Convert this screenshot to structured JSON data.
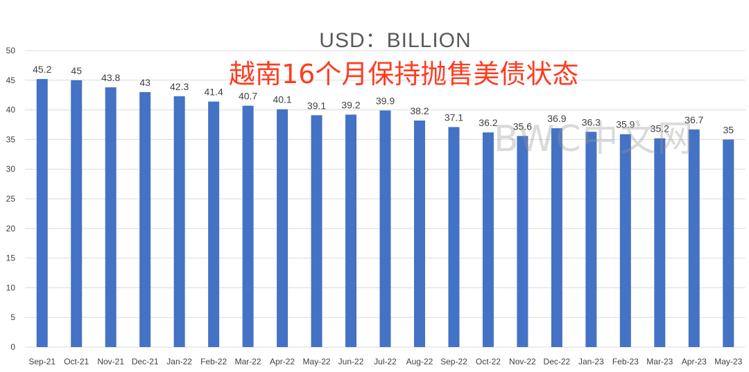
{
  "title": "USD：BILLION",
  "subtitle": "越南16个月保持抛售美债状态",
  "watermark": "BWC中文网",
  "chart_data": {
    "type": "bar",
    "categories": [
      "Sep-21",
      "Oct-21",
      "Nov-21",
      "Dec-21",
      "Jan-22",
      "Feb-22",
      "Mar-22",
      "Apr-22",
      "May-22",
      "Jun-22",
      "Jul-22",
      "Aug-22",
      "Sep-22",
      "Oct-22",
      "Nov-22",
      "Dec-22",
      "Jan-23",
      "Feb-23",
      "Mar-23",
      "Apr-23",
      "May-23"
    ],
    "series": [
      {
        "values": [
          45.2,
          45,
          43.8,
          43,
          42.3,
          41.4,
          40.7,
          40.1,
          39.1,
          39.2,
          39.9,
          38.2,
          37.1,
          36.2,
          35.6,
          36.9,
          36.3,
          35.9,
          35.2,
          36.7,
          35
        ]
      }
    ],
    "data_labels": [
      "45.2",
      "45",
      "43.8",
      "43",
      "42.3",
      "41.4",
      "40.7",
      "40.1",
      "39.1",
      "39.2",
      "39.9",
      "38.2",
      "37.1",
      "36.2",
      "35.6",
      "36.9",
      "36.3",
      "35.9",
      "35.2",
      "36.7",
      "35"
    ],
    "ylim": [
      0,
      50
    ],
    "yticks": [
      0,
      5,
      10,
      15,
      20,
      25,
      30,
      35,
      40,
      45,
      50
    ],
    "grid": true,
    "legend": "none",
    "colors": {
      "bar": "#4472c4",
      "grid": "#d9d9d9",
      "axis_text": "#404040",
      "label_text": "#404040"
    }
  }
}
